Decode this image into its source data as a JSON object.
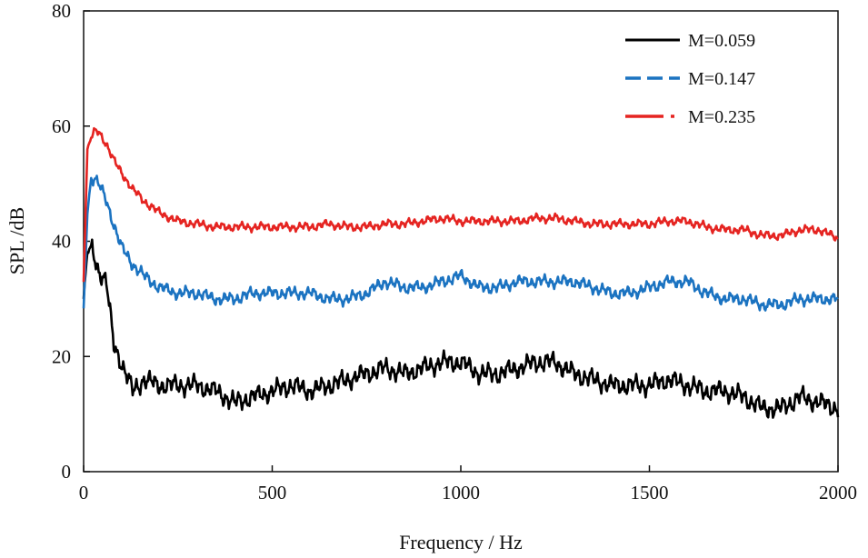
{
  "chart_data": {
    "type": "line",
    "title": "",
    "xlabel": "Frequency  / Hz",
    "ylabel": "SPL /dB",
    "xlim": [
      0,
      2000
    ],
    "ylim": [
      0,
      80
    ],
    "xticks": [
      0,
      500,
      1000,
      1500,
      2000
    ],
    "xtick_labels": [
      "0",
      "500",
      "1000",
      "1500",
      "2000"
    ],
    "yticks": [
      0,
      20,
      40,
      60,
      80
    ],
    "ytick_labels": [
      "0",
      "20",
      "40",
      "60",
      "80"
    ],
    "grid": false,
    "legend_position": "top-right",
    "x": [
      0,
      10,
      20,
      30,
      40,
      60,
      80,
      100,
      130,
      160,
      200,
      250,
      300,
      350,
      400,
      450,
      500,
      550,
      600,
      650,
      700,
      750,
      800,
      850,
      900,
      950,
      1000,
      1050,
      1100,
      1150,
      1200,
      1250,
      1300,
      1350,
      1400,
      1450,
      1500,
      1550,
      1600,
      1650,
      1700,
      1750,
      1800,
      1850,
      1900,
      1950,
      2000
    ],
    "series": [
      {
        "name": "M=0.059",
        "color": "#000000",
        "dash": "solid",
        "values": [
          30,
          38,
          39,
          37,
          35,
          33,
          22,
          19,
          14,
          16,
          15,
          15,
          15,
          14,
          12,
          13,
          14,
          15,
          14,
          15,
          16,
          17,
          18,
          17,
          18,
          19,
          19,
          17,
          17,
          18,
          19,
          19,
          17,
          16,
          15,
          15,
          15,
          16,
          15,
          14,
          14,
          13,
          11,
          11,
          13,
          12,
          11
        ]
      },
      {
        "name": "M=0.147",
        "color": "#1b73c1",
        "dash": "dashed",
        "values": [
          28,
          45,
          51,
          51,
          50,
          47,
          43,
          39,
          36,
          34,
          32,
          31,
          31,
          30,
          30,
          31,
          31,
          31,
          31,
          30,
          30,
          31,
          33,
          32,
          32,
          33,
          34,
          32,
          32,
          33,
          33,
          33,
          33,
          32,
          31,
          31,
          32,
          33,
          33,
          31,
          30,
          30,
          29,
          29,
          30,
          30,
          30
        ]
      },
      {
        "name": "M=0.235",
        "color": "#e52421",
        "dash": "dashdot",
        "values": [
          33,
          56,
          58,
          59,
          59,
          57,
          54,
          52,
          49,
          47,
          45,
          43.5,
          43,
          42.5,
          42.5,
          42.5,
          42.5,
          42.5,
          42.5,
          43,
          42.5,
          42.5,
          43,
          43,
          43.5,
          44,
          43.5,
          43.5,
          43.5,
          43.5,
          44,
          44,
          43.5,
          43,
          43,
          43,
          43,
          43.5,
          43.5,
          42.5,
          42,
          42,
          41,
          41,
          42,
          42,
          40.5
        ]
      }
    ]
  }
}
